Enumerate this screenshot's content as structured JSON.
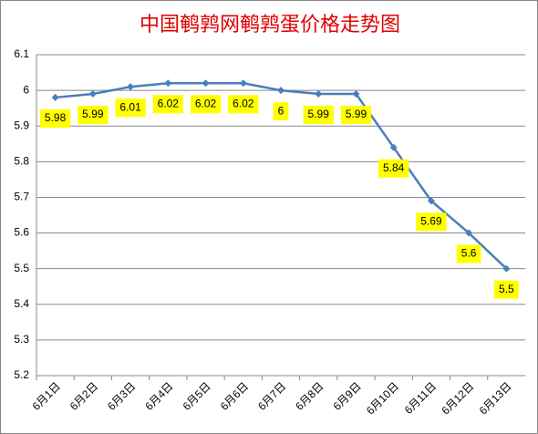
{
  "chart_data": {
    "type": "line",
    "title": "中国鹌鹑网鹌鹑蛋价格走势图",
    "categories": [
      "6月1日",
      "6月2日",
      "6月3日",
      "6月4日",
      "6月5日",
      "6月6日",
      "6月7日",
      "6月8日",
      "6月9日",
      "6月10日",
      "6月11日",
      "6月12日",
      "6月13日"
    ],
    "values": [
      5.98,
      5.99,
      6.01,
      6.02,
      6.02,
      6.02,
      6,
      5.99,
      5.99,
      5.84,
      5.69,
      5.6,
      5.5
    ],
    "color": "#4a7ebb",
    "label_color": "#ffff00",
    "ylim": [
      5.2,
      6.1
    ],
    "yticks": [
      5.2,
      5.3,
      5.4,
      5.5,
      5.6,
      5.7,
      5.8,
      5.9,
      6,
      6.1
    ],
    "grid": true
  }
}
